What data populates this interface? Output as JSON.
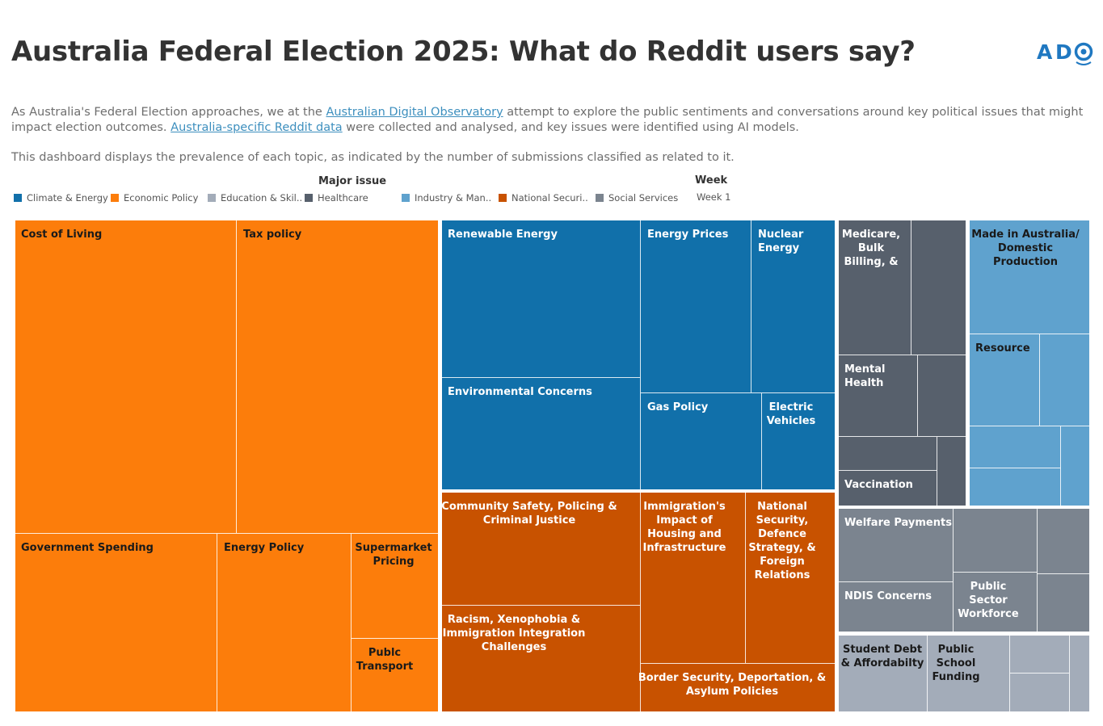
{
  "header": {
    "title": "Australia Federal Election 2025: What do Reddit users say?",
    "logo_text": "ADO"
  },
  "intro": {
    "p1_a": "As Australia's Federal Election approaches, we at the ",
    "p1_link1": "Australian Digital Observatory",
    "p1_b": " attempt to explore the public sentiments and conversations around key political issues that might impact election outcomes. ",
    "p1_link2": "Australia-specific Reddit data",
    "p1_c": " were collected and analysed, and key issues were identified using AI models.",
    "p2": "This dashboard displays the prevalence of each topic, as indicated by the number of submissions classified as related to it."
  },
  "legend": {
    "title": "Major issue",
    "items": [
      {
        "label": "Climate & Energy",
        "color": "#1170aa"
      },
      {
        "label": "Economic Policy",
        "color": "#fc7d0b"
      },
      {
        "label": "Education & Skil..",
        "color": "#a3acb9"
      },
      {
        "label": "Healthcare",
        "color": "#57606c"
      },
      {
        "label": "Industry & Man..",
        "color": "#5fa2ce"
      },
      {
        "label": "National Securi..",
        "color": "#c85200"
      },
      {
        "label": "Social Services",
        "color": "#7b848f"
      }
    ]
  },
  "filter": {
    "title": "Week",
    "value": "Week 1"
  },
  "chart_data": {
    "type": "treemap",
    "groups": [
      {
        "name": "Economic Policy",
        "color": "#fc7d0b",
        "label_color": "#1a1a1a",
        "topics": [
          {
            "label": "Cost of Living"
          },
          {
            "label": "Tax policy"
          },
          {
            "label": "Government Spending"
          },
          {
            "label": "Energy Policy"
          },
          {
            "label": "Supermarket Pricing"
          },
          {
            "label": "Publc Transport"
          }
        ]
      },
      {
        "name": "Climate & Energy",
        "color": "#1170aa",
        "label_color": "#ffffff",
        "topics": [
          {
            "label": "Renewable Energy"
          },
          {
            "label": "Environmental Concerns"
          },
          {
            "label": "Energy Prices"
          },
          {
            "label": "Nuclear Energy"
          },
          {
            "label": "Gas Policy"
          },
          {
            "label": "Electric Vehicles"
          }
        ]
      },
      {
        "name": "National Security",
        "color": "#c85200",
        "label_color": "#ffffff",
        "topics": [
          {
            "label": "Community Safety, Policing & Criminal Justice"
          },
          {
            "label": "Racism, Xenophobia & Immigration Integration Challenges"
          },
          {
            "label": "Immigration's Impact of Housing and Infrastructure"
          },
          {
            "label": "National Security, Defence Strategy, & Foreign Relations"
          },
          {
            "label": "Border Security, Deportation, & Asylum Policies"
          }
        ]
      },
      {
        "name": "Healthcare",
        "color": "#57606c",
        "label_color": "#ffffff",
        "topics": [
          {
            "label": "Medicare, Bulk Billing, &"
          },
          {
            "label": ""
          },
          {
            "label": "Mental Health"
          },
          {
            "label": ""
          },
          {
            "label": ""
          },
          {
            "label": ""
          },
          {
            "label": "Vaccination"
          }
        ]
      },
      {
        "name": "Industry & Manufacturing",
        "color": "#5fa2ce",
        "label_color": "#1a1a1a",
        "topics": [
          {
            "label": "Made in Australia/ Domestic Production"
          },
          {
            "label": "Resource"
          },
          {
            "label": ""
          },
          {
            "label": ""
          },
          {
            "label": ""
          },
          {
            "label": ""
          }
        ]
      },
      {
        "name": "Social Services",
        "color": "#7b848f",
        "label_color": "#ffffff",
        "topics": [
          {
            "label": "Welfare Payments"
          },
          {
            "label": ""
          },
          {
            "label": ""
          },
          {
            "label": "NDIS Concerns"
          },
          {
            "label": "Public Sector Workforce"
          },
          {
            "label": ""
          }
        ]
      },
      {
        "name": "Education & Skills",
        "color": "#a3acb9",
        "label_color": "#1a1a1a",
        "topics": [
          {
            "label": "Student Debt & Affordabilty"
          },
          {
            "label": "Public School Funding"
          },
          {
            "label": ""
          },
          {
            "label": ""
          },
          {
            "label": ""
          }
        ]
      }
    ]
  }
}
